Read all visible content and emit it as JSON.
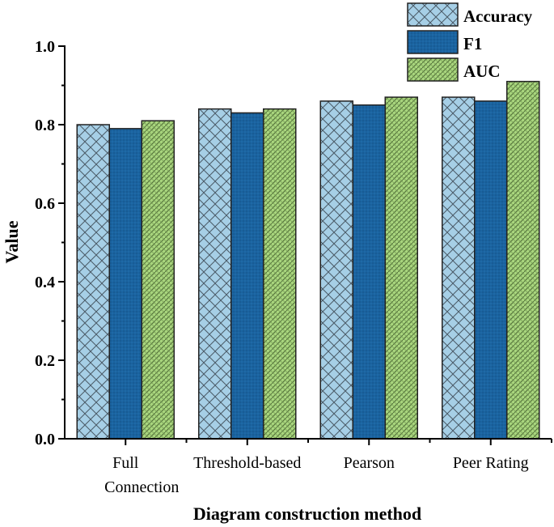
{
  "chart_data": {
    "type": "bar",
    "title": "",
    "xlabel": "Diagram construction method",
    "ylabel": "Value",
    "ylim": [
      0.0,
      1.0
    ],
    "yticks": [
      "0.0",
      "0.2",
      "0.4",
      "0.6",
      "0.8",
      "1.0"
    ],
    "ytick_values": [
      0.0,
      0.2,
      0.4,
      0.6,
      0.8,
      1.0
    ],
    "categories": [
      [
        "Full",
        "Connection"
      ],
      [
        "Threshold-based"
      ],
      [
        "Pearson"
      ],
      [
        "Peer Rating"
      ]
    ],
    "series": [
      {
        "name": "Accuracy",
        "values": [
          0.8,
          0.84,
          0.86,
          0.87
        ],
        "color": "#a6cfe6",
        "pattern": "crosshatch"
      },
      {
        "name": "F1",
        "values": [
          0.79,
          0.83,
          0.85,
          0.86
        ],
        "color": "#1a63a0",
        "pattern": "dots"
      },
      {
        "name": "AUC",
        "values": [
          0.81,
          0.84,
          0.87,
          0.91
        ],
        "color": "#a8d57d",
        "pattern": "weave"
      }
    ],
    "legend": "top-right",
    "grid": false
  }
}
